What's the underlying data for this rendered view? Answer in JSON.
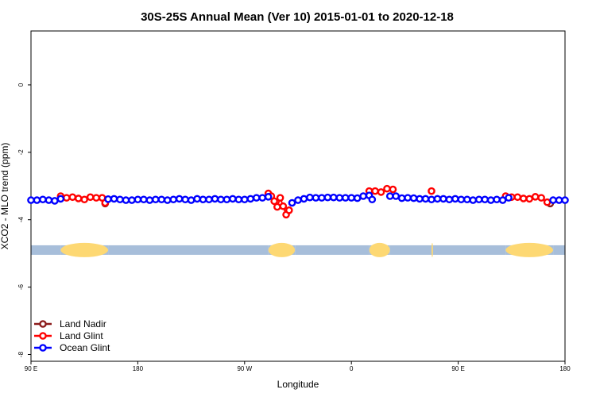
{
  "chart_data": {
    "type": "line",
    "title": "30S-25S Annual Mean (Ver 10)   2015-01-01 to 2020-12-18",
    "xlabel": "Longitude",
    "ylabel": "XCO2 - MLO trend (ppm)",
    "xlim": [
      -90,
      270
    ],
    "ylim": [
      -8.2,
      1.6
    ],
    "x_ticks": [
      {
        "value": -90,
        "label": "90 E"
      },
      {
        "value": -18,
        "label": "180"
      },
      {
        "value": 54,
        "label": "90 W"
      },
      {
        "value": 126,
        "label": "0"
      },
      {
        "value": 198,
        "label": "90 E"
      },
      {
        "value": 270,
        "label": "180"
      }
    ],
    "y_ticks": [
      {
        "value": 0,
        "label": "0"
      },
      {
        "value": -2,
        "label": "-2"
      },
      {
        "value": -4,
        "label": "-4"
      },
      {
        "value": -6,
        "label": "-6"
      },
      {
        "value": -8,
        "label": "-8"
      }
    ],
    "land_mask": {
      "y": -4.9,
      "segments": [
        {
          "type": "ocean",
          "x0": -90,
          "x1": -70
        },
        {
          "type": "land",
          "x0": -70,
          "x1": -38
        },
        {
          "type": "ocean",
          "x0": -38,
          "x1": 70
        },
        {
          "type": "land",
          "x0": 70,
          "x1": 88
        },
        {
          "type": "ocean",
          "x0": 88,
          "x1": 138
        },
        {
          "type": "land",
          "x0": 138,
          "x1": 152
        },
        {
          "type": "ocean",
          "x0": 152,
          "x1": 180
        },
        {
          "type": "land",
          "x0": 180,
          "x1": 181
        },
        {
          "type": "ocean",
          "x0": 181,
          "x1": 230
        },
        {
          "type": "land",
          "x0": 230,
          "x1": 262
        },
        {
          "type": "ocean",
          "x0": 262,
          "x1": 270
        }
      ],
      "colors": {
        "ocean": "#A7BEDA",
        "land": "#FDD873"
      }
    },
    "series": [
      {
        "name": "Land Nadir",
        "color": "#8B1A1A",
        "x": [
          -40,
          260
        ],
        "values": [
          -3.52,
          -3.52
        ]
      },
      {
        "name": "Land Glint",
        "color": "#FF0000",
        "x": [
          -70,
          -66,
          -62,
          -58,
          -54,
          -50,
          -46,
          -42,
          -40,
          70,
          72,
          74,
          76,
          78,
          80,
          82,
          84,
          138,
          142,
          146,
          150,
          154,
          180,
          230,
          234,
          238,
          242,
          246,
          250,
          254,
          258
        ],
        "values": [
          -3.3,
          -3.35,
          -3.33,
          -3.37,
          -3.4,
          -3.33,
          -3.35,
          -3.35,
          -3.5,
          -3.22,
          -3.3,
          -3.45,
          -3.62,
          -3.35,
          -3.6,
          -3.85,
          -3.72,
          -3.15,
          -3.15,
          -3.18,
          -3.08,
          -3.1,
          -3.15,
          -3.3,
          -3.33,
          -3.33,
          -3.37,
          -3.38,
          -3.32,
          -3.35,
          -3.48
        ]
      },
      {
        "name": "Ocean Glint",
        "color": "#0000FF",
        "x": [
          -90,
          -86,
          -82,
          -78,
          -74,
          -70,
          -38,
          -34,
          -30,
          -26,
          -22,
          -18,
          -14,
          -10,
          -6,
          -2,
          2,
          6,
          10,
          14,
          18,
          22,
          26,
          30,
          34,
          38,
          42,
          46,
          50,
          54,
          58,
          62,
          66,
          70,
          86,
          90,
          94,
          98,
          102,
          106,
          110,
          114,
          118,
          122,
          126,
          130,
          134,
          138,
          140,
          152,
          156,
          160,
          164,
          168,
          172,
          176,
          180,
          184,
          188,
          192,
          196,
          200,
          204,
          208,
          212,
          216,
          220,
          224,
          228,
          232,
          262,
          266,
          270
        ],
        "values": [
          -3.42,
          -3.42,
          -3.4,
          -3.42,
          -3.44,
          -3.38,
          -3.39,
          -3.38,
          -3.4,
          -3.42,
          -3.42,
          -3.4,
          -3.4,
          -3.42,
          -3.4,
          -3.4,
          -3.42,
          -3.4,
          -3.38,
          -3.4,
          -3.42,
          -3.38,
          -3.4,
          -3.4,
          -3.38,
          -3.4,
          -3.4,
          -3.38,
          -3.4,
          -3.4,
          -3.38,
          -3.35,
          -3.35,
          -3.32,
          -3.5,
          -3.42,
          -3.38,
          -3.34,
          -3.35,
          -3.35,
          -3.34,
          -3.34,
          -3.35,
          -3.35,
          -3.35,
          -3.36,
          -3.3,
          -3.28,
          -3.4,
          -3.3,
          -3.3,
          -3.36,
          -3.35,
          -3.36,
          -3.38,
          -3.38,
          -3.4,
          -3.38,
          -3.38,
          -3.4,
          -3.38,
          -3.4,
          -3.4,
          -3.42,
          -3.4,
          -3.4,
          -3.42,
          -3.4,
          -3.42,
          -3.35,
          -3.42,
          -3.42,
          -3.42
        ]
      }
    ],
    "legend": {
      "position": "bottom-left",
      "entries": [
        "Land Nadir",
        "Land Glint",
        "Ocean Glint"
      ]
    }
  }
}
